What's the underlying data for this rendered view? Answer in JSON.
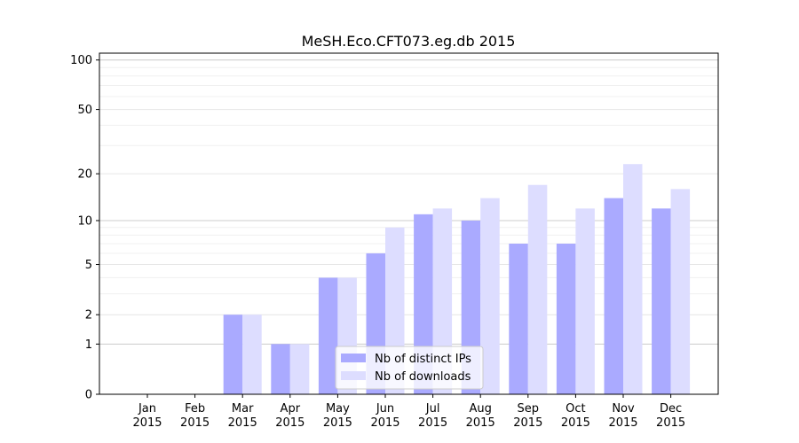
{
  "chart_data": {
    "type": "bar",
    "title": "MeSH.Eco.CFT073.eg.db 2015",
    "xlabel": "",
    "ylabel": "",
    "scale": "log1p",
    "ylim": [
      0,
      100
    ],
    "yticks": [
      0,
      1,
      2,
      5,
      10,
      20,
      50,
      100
    ],
    "grid": "horizontal",
    "legend_position": "bottom-center",
    "categories": [
      "Jan\n2015",
      "Feb\n2015",
      "Mar\n2015",
      "Apr\n2015",
      "May\n2015",
      "Jun\n2015",
      "Jul\n2015",
      "Aug\n2015",
      "Sep\n2015",
      "Oct\n2015",
      "Nov\n2015",
      "Dec\n2015"
    ],
    "series": [
      {
        "name": "Nb of distinct IPs",
        "color": "#aaaaff",
        "values": [
          0,
          0,
          2,
          1,
          4,
          6,
          11,
          10,
          7,
          7,
          14,
          12
        ]
      },
      {
        "name": "Nb of downloads",
        "color": "#ddddff",
        "values": [
          0,
          0,
          2,
          1,
          4,
          9,
          12,
          14,
          17,
          12,
          23,
          16
        ]
      }
    ]
  }
}
